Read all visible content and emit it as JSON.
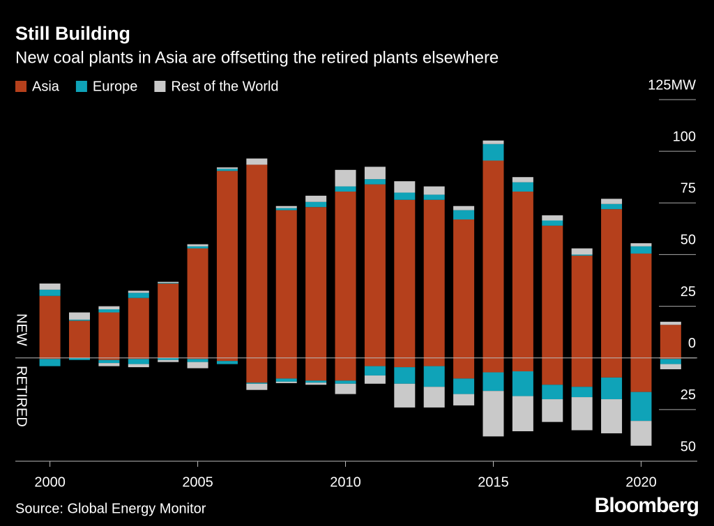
{
  "chart_data": {
    "type": "bar",
    "stacked": true,
    "title": "Still Building",
    "subtitle": "New coal plants in Asia are offsetting the retired plants elsewhere",
    "new_label": "NEW",
    "retired_label": "RETIRED",
    "source": "Source: Global Energy Monitor",
    "brand": "Bloomberg",
    "x": [
      2000,
      2001,
      2002,
      2003,
      2004,
      2005,
      2006,
      2007,
      2008,
      2009,
      2010,
      2011,
      2012,
      2013,
      2014,
      2015,
      2016,
      2017,
      2018,
      2019,
      2020,
      2021
    ],
    "xlim": [
      1998.83,
      2021.9
    ],
    "xticks": [
      2000,
      2005,
      2010,
      2015,
      2020
    ],
    "ylim": [
      -50,
      125
    ],
    "yticks": [
      {
        "value": -50,
        "label": "50"
      },
      {
        "value": -25,
        "label": "25"
      },
      0,
      25,
      50,
      75,
      100,
      {
        "value": 125,
        "label": "125MW"
      }
    ],
    "series": [
      {
        "name": "Asia",
        "color": "#b5401c",
        "values": [
          30,
          18,
          22,
          29,
          36,
          53,
          90.5,
          93.5,
          71.5,
          73,
          80.5,
          84,
          76.5,
          76.5,
          67,
          95.5,
          80.5,
          64,
          49.5,
          72,
          50.5,
          16
        ],
        "retired": [
          -0.5,
          0,
          -1,
          -0.5,
          0,
          -0.5,
          -1.5,
          -12,
          -10,
          -11,
          -11,
          -4,
          -4.5,
          -4,
          -10,
          -7,
          -6.5,
          -13,
          -14,
          -9.5,
          -16.5,
          -0.5
        ]
      },
      {
        "name": "Europe",
        "color": "#0fa3b8",
        "values": [
          3,
          0.5,
          1.5,
          2.5,
          0.3,
          1,
          1,
          0,
          1,
          2.5,
          2.5,
          2.5,
          3.5,
          2.5,
          4.5,
          8,
          4.5,
          2.5,
          0.5,
          2.5,
          3.5,
          0
        ],
        "retired": [
          -3.5,
          -1,
          -1.5,
          -2.5,
          -1,
          -1.5,
          -1.5,
          -0.5,
          -1.5,
          -1,
          -1.5,
          -4.5,
          -8,
          -10,
          -7.5,
          -9,
          -12,
          -7,
          -5,
          -10.5,
          -14,
          -2.5
        ]
      },
      {
        "name": "Rest of the World",
        "color": "#c9c9c9",
        "values": [
          3,
          3.5,
          1.5,
          1,
          0.5,
          1,
          0.7,
          3,
          1,
          3,
          8,
          6,
          5.5,
          4,
          2,
          1.7,
          2.5,
          2.5,
          3,
          2.5,
          1.5,
          1.5
        ],
        "retired": [
          0,
          0,
          -1.5,
          -1.5,
          -1,
          -3,
          0,
          -3,
          -0.7,
          -1,
          -5,
          -4,
          -11.5,
          -10,
          -5.5,
          -22,
          -17,
          -11,
          -16,
          -16.5,
          -12,
          -2.5
        ]
      }
    ]
  }
}
